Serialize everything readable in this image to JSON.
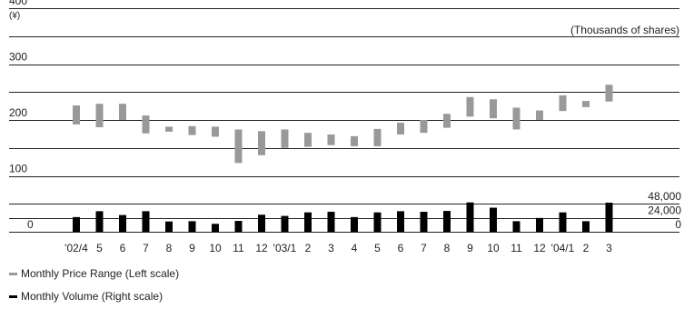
{
  "chart_data": {
    "type": "bar",
    "left_unit": "(¥)",
    "right_unit": "(Thousands of shares)",
    "left_axis": {
      "ticks": [
        0,
        100,
        200,
        300,
        400
      ],
      "ylim": [
        0,
        400
      ]
    },
    "right_axis": {
      "ticks": [
        "0",
        "24,000",
        "48,000"
      ],
      "values": [
        0,
        24000,
        48000
      ]
    },
    "categories": [
      "'02/4",
      "5",
      "6",
      "7",
      "8",
      "9",
      "10",
      "11",
      "12",
      "'03/1",
      "2",
      "3",
      "4",
      "5",
      "6",
      "7",
      "8",
      "9",
      "10",
      "11",
      "12",
      "'04/1",
      "2",
      "3"
    ],
    "series": [
      {
        "name": "Monthly Price Range (Left scale)",
        "type": "range",
        "color": "#999999",
        "low": [
          192,
          187,
          200,
          176,
          179,
          173,
          170,
          123,
          137,
          150,
          152,
          155,
          153,
          153,
          174,
          177,
          186,
          206,
          203,
          183,
          200,
          216,
          223,
          233
        ],
        "high": [
          226,
          229,
          229,
          208,
          188,
          189,
          188,
          183,
          180,
          183,
          177,
          174,
          171,
          184,
          195,
          200,
          211,
          241,
          237,
          222,
          217,
          244,
          234,
          263
        ]
      },
      {
        "name": "Monthly Volume (Right scale)",
        "type": "bar",
        "color": "#000000",
        "values": [
          25000,
          35000,
          28500,
          35000,
          17500,
          18000,
          13500,
          18500,
          29000,
          27000,
          33000,
          34000,
          25000,
          33000,
          35000,
          34000,
          35500,
          50000,
          41000,
          18000,
          23500,
          33000,
          18000,
          49500
        ]
      }
    ],
    "legend": [
      "Monthly Price Range (Left scale)",
      "Monthly Volume (Right scale)"
    ],
    "grid": true
  }
}
